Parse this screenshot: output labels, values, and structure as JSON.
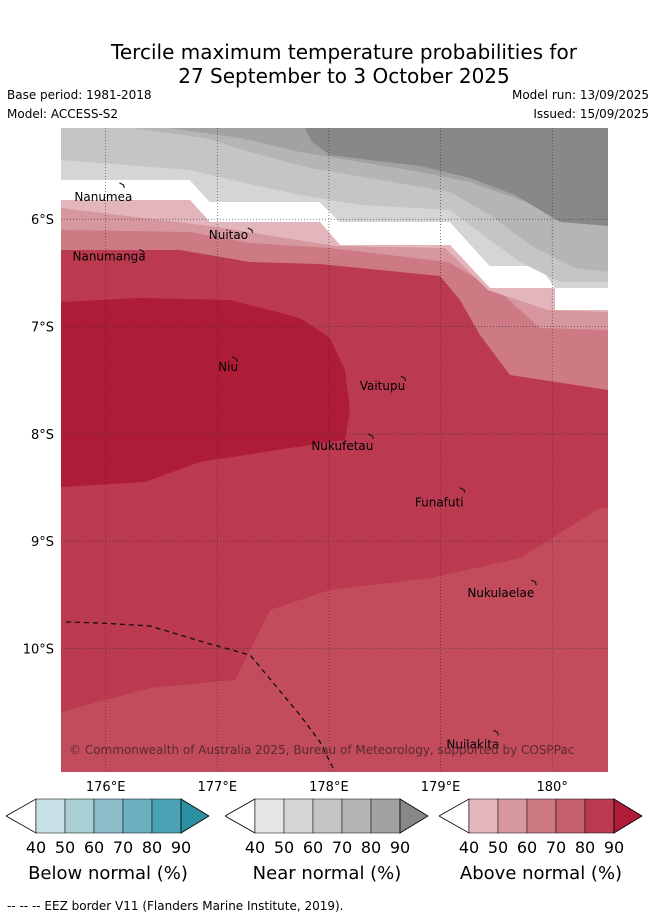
{
  "title": {
    "line1": "Tercile maximum temperature probabilities for",
    "line2": "27 September to 3 October 2025"
  },
  "meta": {
    "base_period": "Base period: 1981-2018",
    "model": "Model: ACCESS-S2",
    "model_run": "Model run: 13/09/2025",
    "issued": "Issued: 15/09/2025"
  },
  "map": {
    "lon_range": [
      175.6,
      180.5
    ],
    "lat_range": [
      -5.15,
      -11.15
    ],
    "lon_ticks": [
      {
        "value": 176,
        "label": "176°E"
      },
      {
        "value": 177,
        "label": "177°E"
      },
      {
        "value": 178,
        "label": "178°E"
      },
      {
        "value": 179,
        "label": "179°E"
      },
      {
        "value": 180,
        "label": "180°"
      }
    ],
    "lat_ticks": [
      {
        "value": -6,
        "label": "6°S"
      },
      {
        "value": -7,
        "label": "7°S"
      },
      {
        "value": -8,
        "label": "8°S"
      },
      {
        "value": -9,
        "label": "9°S"
      },
      {
        "value": -10,
        "label": "10°S"
      }
    ],
    "islands": [
      {
        "name": "Nanumea",
        "lon": 176.15,
        "lat": -5.68
      },
      {
        "name": "Nuitao",
        "lon": 177.3,
        "lat": -6.1
      },
      {
        "name": "Nanumanga",
        "lon": 176.33,
        "lat": -6.3
      },
      {
        "name": "Niu",
        "lon": 177.16,
        "lat": -7.3
      },
      {
        "name": "Vaitupu",
        "lon": 178.67,
        "lat": -7.48
      },
      {
        "name": "Nukufetau",
        "lon": 178.38,
        "lat": -8.02
      },
      {
        "name": "Funafuti",
        "lon": 179.2,
        "lat": -8.52
      },
      {
        "name": "Nukulaelae",
        "lon": 179.84,
        "lat": -9.38
      },
      {
        "name": "Nuilakita",
        "lon": 179.5,
        "lat": -10.78
      }
    ],
    "copyright": "© Commonwealth of Australia 2025, Bureau of Meteorology, supported by COSPPac"
  },
  "colorbars": [
    {
      "label": "Below normal (%)",
      "ticks": [
        "40",
        "50",
        "60",
        "70",
        "80",
        "90"
      ],
      "colors": [
        "#ffffff",
        "#c8e1e7",
        "#a9ced4",
        "#8cbcc8",
        "#6ab0bf",
        "#4aa3b4",
        "#2b8fa3"
      ]
    },
    {
      "label": "Near normal (%)",
      "ticks": [
        "40",
        "50",
        "60",
        "70",
        "80",
        "90"
      ],
      "colors": [
        "#ffffff",
        "#e6e6e6",
        "#d5d5d5",
        "#c5c5c5",
        "#b5b5b5",
        "#a2a2a2",
        "#888888"
      ]
    },
    {
      "label": "Above normal (%)",
      "ticks": [
        "40",
        "50",
        "60",
        "70",
        "80",
        "90"
      ],
      "colors": [
        "#ffffff",
        "#e3b6bd",
        "#d7979f",
        "#cd7a84",
        "#c45f6c",
        "#bb3a4f",
        "#af1c37"
      ]
    }
  ],
  "footer": "-- -- -- EEZ border V11 (Flanders Marine Institute, 2019)."
}
